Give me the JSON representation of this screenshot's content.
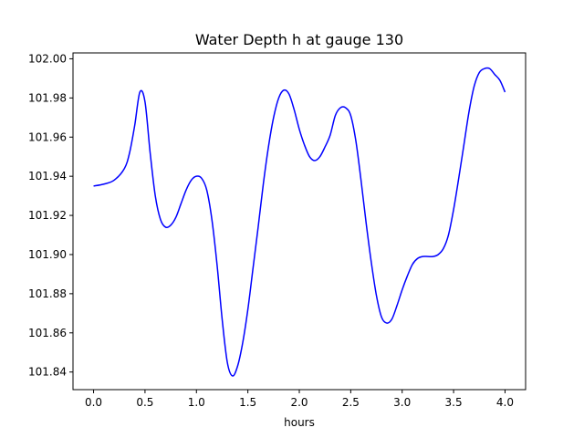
{
  "chart_data": {
    "type": "line",
    "title": "Water Depth h at gauge 130",
    "xlabel": "hours",
    "ylabel": "",
    "xlim": [
      -0.2,
      4.2
    ],
    "ylim": [
      101.831,
      102.003
    ],
    "xticks": [
      0.0,
      0.5,
      1.0,
      1.5,
      2.0,
      2.5,
      3.0,
      3.5,
      4.0
    ],
    "xtick_labels": [
      "0.0",
      "0.5",
      "1.0",
      "1.5",
      "2.0",
      "2.5",
      "3.0",
      "3.5",
      "4.0"
    ],
    "yticks": [
      101.84,
      101.86,
      101.88,
      101.9,
      101.92,
      101.94,
      101.96,
      101.98,
      102.0
    ],
    "ytick_labels": [
      "101.84",
      "101.86",
      "101.88",
      "101.90",
      "101.92",
      "101.94",
      "101.96",
      "101.98",
      "102.00"
    ],
    "grid": false,
    "series": [
      {
        "color": "#0000ff",
        "x": [
          0.0,
          0.1,
          0.2,
          0.3,
          0.35,
          0.4,
          0.45,
          0.5,
          0.55,
          0.6,
          0.65,
          0.7,
          0.75,
          0.8,
          0.85,
          0.9,
          0.95,
          1.0,
          1.05,
          1.1,
          1.15,
          1.2,
          1.25,
          1.3,
          1.35,
          1.4,
          1.45,
          1.5,
          1.55,
          1.6,
          1.65,
          1.7,
          1.75,
          1.8,
          1.85,
          1.9,
          1.95,
          2.0,
          2.05,
          2.1,
          2.15,
          2.2,
          2.25,
          2.3,
          2.35,
          2.4,
          2.45,
          2.5,
          2.55,
          2.6,
          2.65,
          2.7,
          2.75,
          2.8,
          2.85,
          2.9,
          2.95,
          3.0,
          3.05,
          3.1,
          3.15,
          3.2,
          3.25,
          3.3,
          3.35,
          3.4,
          3.45,
          3.5,
          3.55,
          3.6,
          3.65,
          3.7,
          3.75,
          3.8,
          3.85,
          3.9,
          3.95,
          4.0
        ],
        "y": [
          101.935,
          101.936,
          101.938,
          101.944,
          101.952,
          101.966,
          101.983,
          101.978,
          101.952,
          101.93,
          101.918,
          101.914,
          101.915,
          101.919,
          101.926,
          101.933,
          101.938,
          101.94,
          101.939,
          101.933,
          101.918,
          101.895,
          101.867,
          101.845,
          101.838,
          101.843,
          101.855,
          101.872,
          101.893,
          101.914,
          101.936,
          101.955,
          101.97,
          101.98,
          101.984,
          101.982,
          101.974,
          101.964,
          101.956,
          101.95,
          101.948,
          101.95,
          101.955,
          101.961,
          101.971,
          101.975,
          101.975,
          101.971,
          101.958,
          101.938,
          101.916,
          101.896,
          101.879,
          101.868,
          101.865,
          101.867,
          101.874,
          101.882,
          101.889,
          101.895,
          101.898,
          101.899,
          101.899,
          101.899,
          101.9,
          101.903,
          101.91,
          101.923,
          101.939,
          101.956,
          101.973,
          101.986,
          101.993,
          101.995,
          101.995,
          101.992,
          101.989,
          101.983
        ]
      }
    ]
  }
}
